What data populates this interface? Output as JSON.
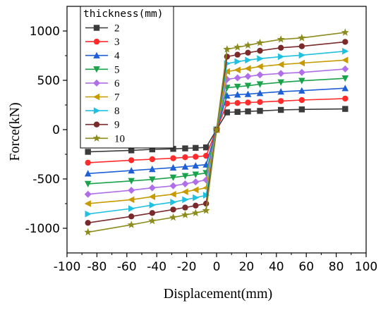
{
  "chart_data": {
    "type": "line",
    "xlabel": "Displacement(mm)",
    "ylabel": "Force(kN)",
    "xlim": [
      -100,
      100
    ],
    "ylim": [
      -1250,
      1250
    ],
    "x_ticks": [
      -100,
      -80,
      -60,
      -40,
      -20,
      0,
      20,
      40,
      60,
      80,
      100
    ],
    "y_ticks": [
      -1000,
      -500,
      0,
      500,
      1000
    ],
    "grid": false,
    "legend": {
      "title": "thickness(mm)",
      "placement": "top-left"
    },
    "x": [
      -86,
      -57,
      -43,
      -29,
      -21,
      -14,
      -7,
      0,
      7,
      14,
      21,
      29,
      43,
      57,
      86
    ],
    "series": [
      {
        "name": "2",
        "color": "#3b3b3b",
        "marker": "square",
        "values": [
          -225,
          -210,
          -200,
          -195,
          -190,
          -185,
          -180,
          0,
          175,
          180,
          185,
          190,
          200,
          205,
          210
        ]
      },
      {
        "name": "3",
        "color": "#ff2b2b",
        "marker": "circle",
        "values": [
          -335,
          -310,
          -300,
          -290,
          -280,
          -275,
          -265,
          0,
          265,
          270,
          275,
          280,
          290,
          300,
          315
        ]
      },
      {
        "name": "4",
        "color": "#1f5fd6",
        "marker": "triangle-up",
        "values": [
          -445,
          -415,
          -400,
          -385,
          -375,
          -365,
          -355,
          0,
          345,
          355,
          360,
          370,
          385,
          395,
          420
        ]
      },
      {
        "name": "5",
        "color": "#1aa34a",
        "marker": "triangle-down",
        "values": [
          -550,
          -520,
          -505,
          -485,
          -470,
          -455,
          -440,
          0,
          425,
          435,
          445,
          460,
          480,
          495,
          520
        ]
      },
      {
        "name": "6",
        "color": "#b06ee8",
        "marker": "diamond",
        "values": [
          -655,
          -615,
          -590,
          -570,
          -550,
          -530,
          -510,
          0,
          510,
          525,
          540,
          555,
          570,
          580,
          615
        ]
      },
      {
        "name": "7",
        "color": "#c79a00",
        "marker": "triangle-left",
        "values": [
          -750,
          -710,
          -680,
          -655,
          -630,
          -610,
          -590,
          0,
          590,
          605,
          620,
          640,
          660,
          675,
          705
        ]
      },
      {
        "name": "8",
        "color": "#20c0e0",
        "marker": "triangle-right",
        "values": [
          -855,
          -800,
          -765,
          -735,
          -710,
          -690,
          -665,
          0,
          670,
          690,
          705,
          720,
          740,
          755,
          795
        ]
      },
      {
        "name": "9",
        "color": "#7a2a2a",
        "marker": "circle",
        "values": [
          -945,
          -880,
          -845,
          -810,
          -790,
          -770,
          -750,
          0,
          740,
          760,
          780,
          800,
          830,
          845,
          890
        ]
      },
      {
        "name": "10",
        "color": "#8c8c1e",
        "marker": "star",
        "values": [
          -1040,
          -965,
          -925,
          -890,
          -865,
          -845,
          -820,
          0,
          815,
          835,
          855,
          880,
          915,
          930,
          985
        ]
      }
    ]
  }
}
